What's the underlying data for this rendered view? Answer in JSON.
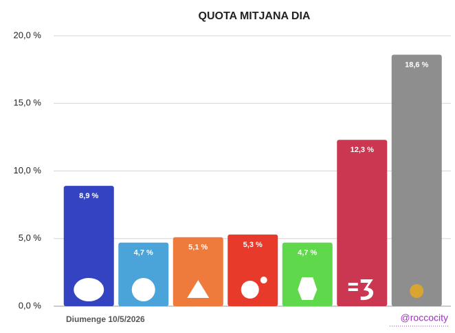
{
  "chart_data": {
    "type": "bar",
    "title": "QUOTA MITJANA DIA",
    "categories": [
      null,
      null,
      null,
      null,
      null,
      null,
      null
    ],
    "values": [
      8.9,
      4.7,
      5.1,
      5.3,
      4.7,
      12.3,
      18.6
    ],
    "value_labels": [
      "8,9 %",
      "4,7 %",
      "5,1 %",
      "5,3 %",
      "4,7 %",
      "12,3 %",
      "18,6 %"
    ],
    "colors": [
      "#3343c1",
      "#4aa4d9",
      "#ee7a3b",
      "#e73a2b",
      "#5fd94b",
      "#cb3651",
      "#8e8e8e"
    ],
    "ylim": [
      0,
      20
    ],
    "yticks": [
      {
        "value": 0,
        "label": "0,0 %"
      },
      {
        "value": 5,
        "label": "5,0 %"
      },
      {
        "value": 10,
        "label": "10,0 %"
      },
      {
        "value": 15,
        "label": "15,0 %"
      },
      {
        "value": 20,
        "label": "20,0 %"
      }
    ],
    "grid": true,
    "footer_left": "Diumenge 10/5/2026",
    "footer_right": "@roccocity"
  }
}
